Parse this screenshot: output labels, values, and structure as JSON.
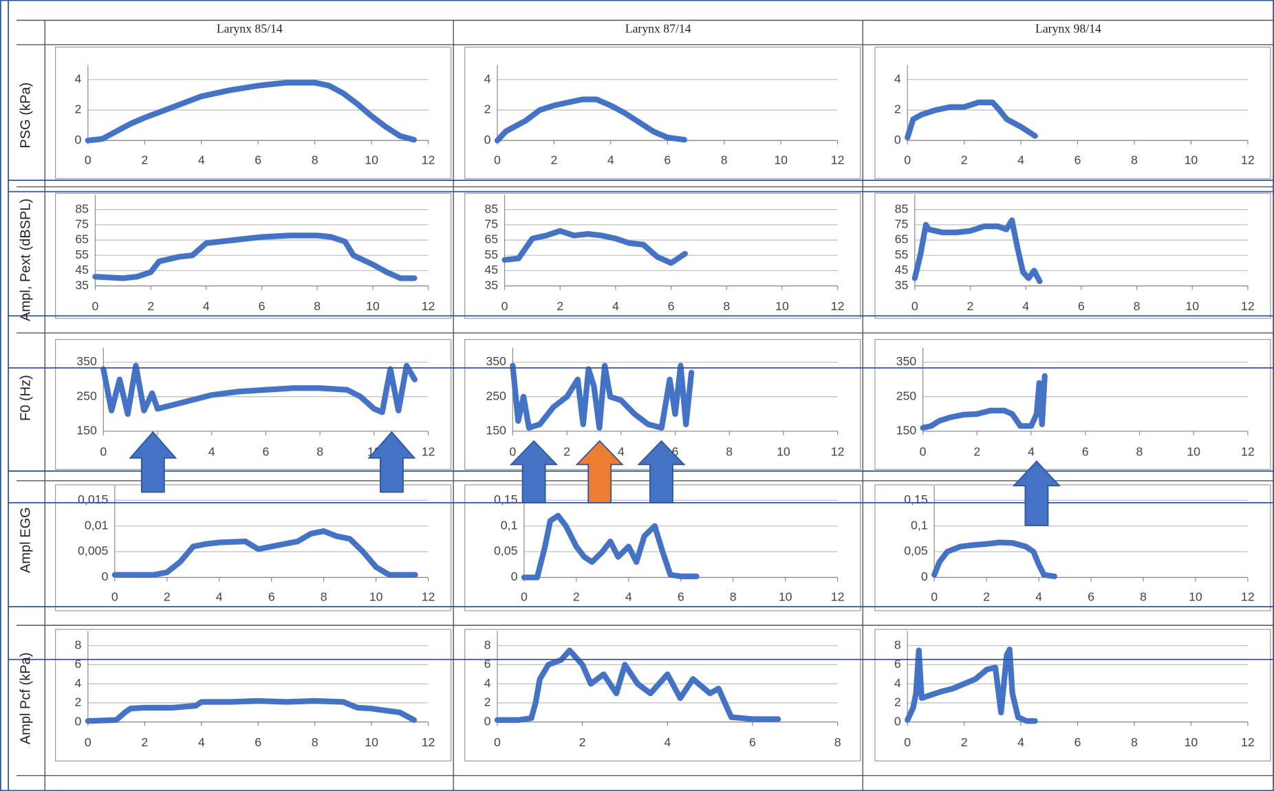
{
  "columns": [
    "Larynx 85/14",
    "Larynx 87/14",
    "Larynx 98/14"
  ],
  "rows": [
    "PSG (kPa)",
    "Ampl, Pext (dBSPL)",
    "F0 (Hz)",
    "Ampl EGG",
    "Ampl Pcf (kPa)"
  ],
  "chart_data": [
    {
      "type": "line",
      "color": "#4472c4",
      "x": [
        0,
        0.5,
        1,
        1.5,
        2,
        3,
        4,
        5,
        6,
        7,
        8,
        8.5,
        9,
        9.5,
        10,
        10.5,
        11,
        11.5
      ],
      "values": [
        0,
        0.1,
        0.6,
        1.1,
        1.5,
        2.2,
        2.9,
        3.3,
        3.6,
        3.8,
        3.8,
        3.6,
        3.1,
        2.4,
        1.6,
        0.9,
        0.3,
        0.05
      ],
      "xlim": [
        0,
        12
      ],
      "xticks": [
        0,
        2,
        4,
        6,
        8,
        10,
        12
      ],
      "ylim": [
        0,
        4
      ],
      "yticks": [
        0,
        2,
        4
      ],
      "grid": true
    },
    {
      "type": "line",
      "color": "#4472c4",
      "x": [
        0,
        0.3,
        0.6,
        1,
        1.5,
        2,
        2.5,
        3,
        3.5,
        4,
        4.5,
        5,
        5.5,
        6,
        6.6
      ],
      "values": [
        0,
        0.6,
        0.9,
        1.3,
        2.0,
        2.3,
        2.5,
        2.7,
        2.7,
        2.3,
        1.8,
        1.2,
        0.6,
        0.2,
        0.05
      ],
      "xlim": [
        0,
        12
      ],
      "xticks": [
        0,
        2,
        4,
        6,
        8,
        10,
        12
      ],
      "ylim": [
        0,
        4
      ],
      "yticks": [
        0,
        2,
        4
      ],
      "grid": true
    },
    {
      "type": "line",
      "color": "#4472c4",
      "x": [
        0,
        0.2,
        0.5,
        1,
        1.5,
        2,
        2.5,
        3,
        3.2,
        3.5,
        4,
        4.5
      ],
      "values": [
        0.2,
        1.4,
        1.7,
        2.0,
        2.2,
        2.2,
        2.5,
        2.5,
        2.1,
        1.4,
        0.9,
        0.3
      ],
      "xlim": [
        0,
        12
      ],
      "xticks": [
        0,
        2,
        4,
        6,
        8,
        10,
        12
      ],
      "ylim": [
        0,
        4
      ],
      "yticks": [
        0,
        2,
        4
      ],
      "grid": true
    },
    {
      "type": "line",
      "color": "#4472c4",
      "x": [
        0,
        1,
        1.5,
        2,
        2.3,
        3,
        3.5,
        4,
        5,
        6,
        7,
        8,
        8.5,
        9,
        9.3,
        10,
        10.5,
        11,
        11.5
      ],
      "values": [
        41,
        40,
        41,
        44,
        51,
        54,
        55,
        63,
        65,
        67,
        68,
        68,
        67,
        64,
        55,
        49,
        44,
        40,
        40
      ],
      "xlim": [
        0,
        12
      ],
      "xticks": [
        0,
        2,
        4,
        6,
        8,
        10,
        12
      ],
      "ylim": [
        35,
        85
      ],
      "yticks": [
        35,
        45,
        55,
        65,
        75,
        85
      ],
      "grid": true
    },
    {
      "type": "line",
      "color": "#4472c4",
      "x": [
        0,
        0.5,
        1,
        1.5,
        2,
        2.5,
        3,
        3.5,
        4,
        4.5,
        5,
        5.5,
        6,
        6.5
      ],
      "values": [
        52,
        53,
        66,
        68,
        71,
        68,
        69,
        68,
        66,
        63,
        62,
        54,
        50,
        56
      ],
      "xlim": [
        0,
        12
      ],
      "xticks": [
        0,
        2,
        4,
        6,
        8,
        10,
        12
      ],
      "ylim": [
        35,
        85
      ],
      "yticks": [
        35,
        45,
        55,
        65,
        75,
        85
      ],
      "grid": true
    },
    {
      "type": "line",
      "color": "#4472c4",
      "x": [
        0,
        0.2,
        0.4,
        0.5,
        1,
        1.5,
        2,
        2.5,
        3,
        3.3,
        3.5,
        3.7,
        3.9,
        4.1,
        4.3,
        4.5
      ],
      "values": [
        40,
        55,
        75,
        72,
        70,
        70,
        71,
        74,
        74,
        72,
        78,
        60,
        44,
        40,
        45,
        38
      ],
      "xlim": [
        0,
        12
      ],
      "xticks": [
        0,
        2,
        4,
        6,
        8,
        10,
        12
      ],
      "ylim": [
        35,
        85
      ],
      "yticks": [
        35,
        45,
        55,
        65,
        75,
        85
      ],
      "grid": true
    },
    {
      "type": "line",
      "color": "#4472c4",
      "x": [
        0,
        0.3,
        0.6,
        0.9,
        1.2,
        1.5,
        1.8,
        2,
        3,
        4,
        5,
        6,
        7,
        8,
        9,
        9.5,
        10,
        10.3,
        10.6,
        10.9,
        11.2,
        11.5
      ],
      "values": [
        330,
        210,
        300,
        200,
        340,
        210,
        260,
        215,
        235,
        255,
        265,
        270,
        275,
        275,
        270,
        250,
        215,
        205,
        330,
        210,
        340,
        300
      ],
      "xlim": [
        0,
        12
      ],
      "xticks": [
        0,
        2,
        4,
        6,
        8,
        10,
        12
      ],
      "ylim": [
        150,
        350
      ],
      "yticks": [
        150,
        250,
        350
      ],
      "grid": true
    },
    {
      "type": "line",
      "color": "#4472c4",
      "x": [
        0,
        0.2,
        0.4,
        0.6,
        1,
        1.5,
        2,
        2.4,
        2.6,
        2.8,
        3,
        3.2,
        3.4,
        3.6,
        4,
        4.5,
        5,
        5.5,
        5.8,
        6,
        6.2,
        6.4,
        6.6
      ],
      "values": [
        340,
        180,
        250,
        160,
        170,
        220,
        250,
        300,
        170,
        330,
        280,
        160,
        340,
        250,
        240,
        200,
        170,
        160,
        300,
        200,
        340,
        170,
        320
      ],
      "xlim": [
        0,
        12
      ],
      "xticks": [
        0,
        2,
        4,
        6,
        8,
        10,
        12
      ],
      "ylim": [
        150,
        350
      ],
      "yticks": [
        150,
        250,
        350
      ],
      "grid": true
    },
    {
      "type": "line",
      "color": "#4472c4",
      "x": [
        0,
        0.3,
        0.6,
        1,
        1.5,
        2,
        2.5,
        3,
        3.3,
        3.6,
        4,
        4.2,
        4.3,
        4.4,
        4.5
      ],
      "values": [
        160,
        165,
        180,
        190,
        198,
        200,
        210,
        210,
        200,
        165,
        165,
        200,
        290,
        170,
        310
      ],
      "xlim": [
        0,
        12
      ],
      "xticks": [
        0,
        2,
        4,
        6,
        8,
        10,
        12
      ],
      "ylim": [
        150,
        350
      ],
      "yticks": [
        150,
        250,
        350
      ],
      "grid": true
    },
    {
      "type": "line",
      "color": "#4472c4",
      "x": [
        0,
        1,
        1.5,
        2,
        2.5,
        3,
        3.5,
        4,
        5,
        5.5,
        6,
        6.5,
        7,
        7.5,
        8,
        8.5,
        9,
        9.5,
        10,
        10.5,
        11.5
      ],
      "values": [
        0.0005,
        0.0005,
        0.0005,
        0.001,
        0.003,
        0.006,
        0.0065,
        0.0068,
        0.007,
        0.0055,
        0.006,
        0.0065,
        0.007,
        0.0085,
        0.009,
        0.008,
        0.0075,
        0.005,
        0.002,
        0.0005,
        0.0005
      ],
      "xlim": [
        0,
        12
      ],
      "xticks": [
        0,
        2,
        4,
        6,
        8,
        10,
        12
      ],
      "ylim": [
        0,
        0.015
      ],
      "yticks": [
        0,
        {
          "value": 0.005,
          "label": "0,005"
        },
        {
          "value": 0.01,
          "label": "0,01"
        },
        {
          "value": 0.015,
          "label": "0,015"
        }
      ],
      "grid": true
    },
    {
      "type": "line",
      "color": "#4472c4",
      "x": [
        0,
        0.5,
        0.8,
        1,
        1.3,
        1.6,
        2,
        2.3,
        2.6,
        3,
        3.3,
        3.6,
        4,
        4.3,
        4.6,
        5,
        5.3,
        5.6,
        6,
        6.6
      ],
      "values": [
        0,
        0,
        0.06,
        0.11,
        0.12,
        0.1,
        0.06,
        0.04,
        0.03,
        0.05,
        0.07,
        0.04,
        0.06,
        0.03,
        0.08,
        0.1,
        0.05,
        0.005,
        0.002,
        0.002
      ],
      "xlim": [
        0,
        12
      ],
      "xticks": [
        0,
        2,
        4,
        6,
        8,
        10,
        12
      ],
      "ylim": [
        0,
        0.15
      ],
      "yticks": [
        0,
        {
          "value": 0.05,
          "label": "0,05"
        },
        {
          "value": 0.1,
          "label": "0,1"
        },
        {
          "value": 0.15,
          "label": "0,15"
        }
      ],
      "grid": true
    },
    {
      "type": "line",
      "color": "#4472c4",
      "x": [
        0,
        0.2,
        0.5,
        1,
        1.5,
        2,
        2.5,
        3,
        3.5,
        3.8,
        4,
        4.2,
        4.6
      ],
      "values": [
        0.005,
        0.03,
        0.05,
        0.06,
        0.063,
        0.065,
        0.068,
        0.067,
        0.06,
        0.05,
        0.025,
        0.005,
        0.002
      ],
      "xlim": [
        0,
        12
      ],
      "xticks": [
        0,
        2,
        4,
        6,
        8,
        10,
        12
      ],
      "ylim": [
        0,
        0.15
      ],
      "yticks": [
        0,
        {
          "value": 0.05,
          "label": "0,05"
        },
        {
          "value": 0.1,
          "label": "0,1"
        },
        {
          "value": 0.15,
          "label": "0,15"
        }
      ],
      "grid": true
    },
    {
      "type": "line",
      "color": "#4472c4",
      "x": [
        0,
        1,
        1.3,
        1.5,
        2,
        3,
        3.8,
        4,
        5,
        6,
        7,
        8,
        9,
        9.5,
        10,
        11,
        11.5
      ],
      "values": [
        0.1,
        0.2,
        1,
        1.4,
        1.5,
        1.5,
        1.7,
        2.1,
        2.1,
        2.2,
        2.1,
        2.2,
        2.1,
        1.5,
        1.4,
        1.0,
        0.2
      ],
      "xlim": [
        0,
        12
      ],
      "xticks": [
        0,
        2,
        4,
        6,
        8,
        10,
        12
      ],
      "ylim": [
        0,
        8
      ],
      "yticks": [
        0,
        2,
        4,
        6,
        8
      ],
      "grid": true
    },
    {
      "type": "line",
      "color": "#4472c4",
      "x": [
        0,
        0.5,
        0.8,
        0.9,
        1,
        1.2,
        1.5,
        1.7,
        2,
        2.2,
        2.5,
        2.8,
        3,
        3.3,
        3.6,
        4,
        4.3,
        4.6,
        5,
        5.2,
        5.5,
        6,
        6.6
      ],
      "values": [
        0.2,
        0.2,
        0.4,
        2,
        4.5,
        6,
        6.5,
        7.5,
        6,
        4,
        5,
        3,
        6,
        4,
        3,
        5,
        2.5,
        4.5,
        3,
        3.5,
        0.5,
        0.3,
        0.3
      ],
      "xlim": [
        0,
        8
      ],
      "xticks": [
        0,
        2,
        4,
        6,
        8
      ],
      "ylim": [
        0,
        8
      ],
      "yticks": [
        0,
        2,
        4,
        6,
        8
      ],
      "grid": true
    },
    {
      "type": "line",
      "color": "#4472c4",
      "x": [
        0,
        0.2,
        0.3,
        0.4,
        0.5,
        0.8,
        1.2,
        1.6,
        2,
        2.4,
        2.8,
        3.1,
        3.3,
        3.5,
        3.6,
        3.7,
        3.9,
        4.2,
        4.5
      ],
      "values": [
        0.2,
        1.5,
        3,
        7.5,
        2.5,
        2.8,
        3.2,
        3.5,
        4,
        4.5,
        5.5,
        5.7,
        1,
        7,
        7.6,
        3,
        0.5,
        0.1,
        0.1
      ],
      "xlim": [
        0,
        12
      ],
      "xticks": [
        0,
        2,
        4,
        6,
        8,
        10,
        12
      ],
      "ylim": [
        0,
        8
      ],
      "yticks": [
        0,
        2,
        4,
        6,
        8
      ],
      "grid": true
    }
  ]
}
